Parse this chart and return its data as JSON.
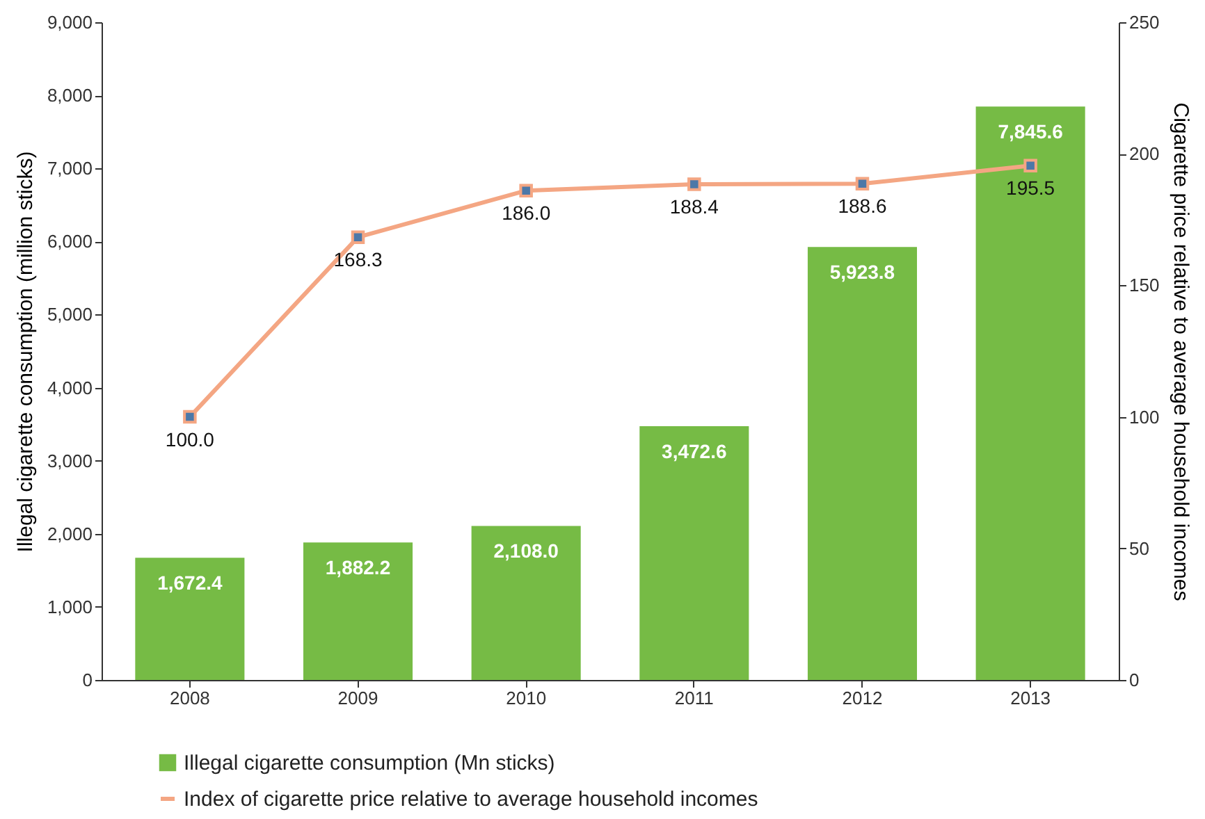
{
  "chart_data": {
    "type": "bar",
    "categories": [
      "2008",
      "2009",
      "2010",
      "2011",
      "2012",
      "2013"
    ],
    "series": [
      {
        "name": "Illegal cigarette consumption (Mn sticks)",
        "color": "#76bb45",
        "values": [
          1672.4,
          1882.2,
          2108.0,
          3472.6,
          5923.8,
          7845.6
        ],
        "value_labels": [
          "1,672.4",
          "1,882.2",
          "2,108.0",
          "3,472.6",
          "5,923.8",
          "7,845.6"
        ]
      },
      {
        "name": "Index of cigarette price relative to average household incomes",
        "type": "line",
        "axis": "y2",
        "color": "#f4a683",
        "values": [
          100.0,
          168.3,
          186.0,
          188.4,
          188.6,
          195.5
        ],
        "value_labels": [
          "100.0",
          "168.3",
          "186.0",
          "188.4",
          "188.6",
          "195.5"
        ]
      }
    ],
    "ylabel": "Illegal cigarette consumption (million sticks)",
    "y2label": "Cigarette price relative to average household incomes",
    "ylim": [
      0,
      9000
    ],
    "yticks": [
      0,
      {
        "value": 1000,
        "label": "1,000"
      },
      {
        "value": 2000,
        "label": "2,000"
      },
      {
        "value": 3000,
        "label": "3,000"
      },
      {
        "value": 4000,
        "label": "4,000"
      },
      {
        "value": 5000,
        "label": "5,000"
      },
      {
        "value": 6000,
        "label": "6,000"
      },
      {
        "value": 7000,
        "label": "7,000"
      },
      {
        "value": 8000,
        "label": "8,000"
      },
      {
        "value": 9000,
        "label": "9,000"
      }
    ],
    "y2lim": [
      0,
      250
    ],
    "y2ticks": [
      0,
      50,
      100,
      150,
      200,
      250
    ],
    "marker": "square",
    "legend": "bottom left"
  }
}
